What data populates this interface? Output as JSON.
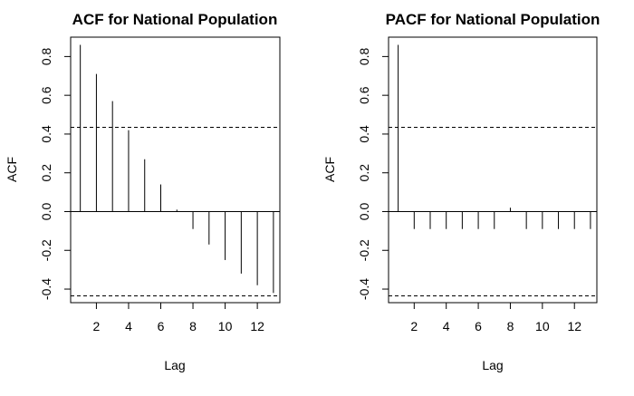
{
  "chart_data": [
    {
      "type": "bar",
      "title": "ACF for National Population",
      "xlabel": "Lag",
      "ylabel": "ACF",
      "lags": [
        1,
        2,
        3,
        4,
        5,
        6,
        7,
        8,
        9,
        10,
        11,
        12,
        13
      ],
      "values": [
        0.86,
        0.71,
        0.57,
        0.42,
        0.27,
        0.14,
        0.01,
        -0.09,
        -0.17,
        -0.25,
        -0.32,
        -0.38,
        -0.42
      ],
      "confidence_bounds": [
        0.435,
        -0.435
      ],
      "xlim": [
        0.4,
        13.4
      ],
      "ylim": [
        -0.47,
        0.9
      ],
      "x_ticks": [
        2,
        4,
        6,
        8,
        10,
        12
      ],
      "y_ticks": [
        -0.4,
        -0.2,
        0.0,
        0.2,
        0.4,
        0.6,
        0.8
      ],
      "y_tick_labels": [
        "-0.4",
        "-0.2",
        "0.0",
        "0.2",
        "0.4",
        "0.6",
        "0.8"
      ],
      "grid": false,
      "legend": "none"
    },
    {
      "type": "bar",
      "title": "PACF for National Population",
      "xlabel": "Lag",
      "ylabel": "ACF",
      "lags": [
        1,
        2,
        3,
        4,
        5,
        6,
        7,
        8,
        9,
        10,
        11,
        12,
        13
      ],
      "values": [
        0.86,
        -0.09,
        -0.09,
        -0.09,
        -0.09,
        -0.09,
        -0.09,
        0.02,
        -0.09,
        -0.09,
        -0.09,
        -0.09,
        -0.09
      ],
      "confidence_bounds": [
        0.435,
        -0.435
      ],
      "xlim": [
        0.4,
        13.4
      ],
      "ylim": [
        -0.47,
        0.9
      ],
      "x_ticks": [
        2,
        4,
        6,
        8,
        10,
        12
      ],
      "y_ticks": [
        -0.4,
        -0.2,
        0.0,
        0.2,
        0.4,
        0.6,
        0.8
      ],
      "y_tick_labels": [
        "-0.4",
        "-0.2",
        "0.0",
        "0.2",
        "0.4",
        "0.6",
        "0.8"
      ],
      "grid": false,
      "legend": "none"
    }
  ]
}
